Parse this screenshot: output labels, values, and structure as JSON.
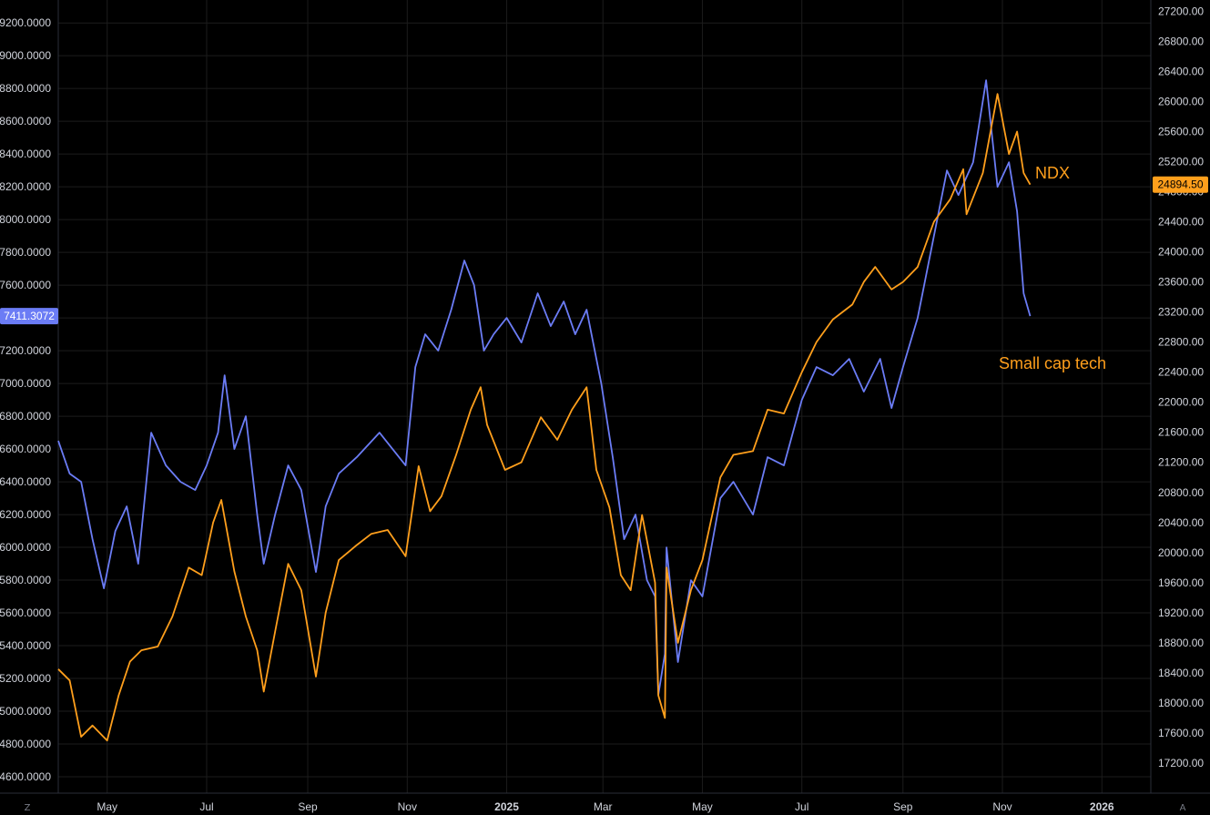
{
  "chart_data": {
    "type": "line",
    "background": "#000000",
    "grid": true,
    "colors": {
      "ndx": "#ff9f1c",
      "small_cap": "#6b7cf5",
      "grid": "#1c1c1c",
      "text": "#d1d4dc"
    },
    "x_labels": [
      "May",
      "Jul",
      "Sep",
      "Nov",
      "2025",
      "Mar",
      "May",
      "Jul",
      "Sep",
      "Nov",
      "2026"
    ],
    "x_range": [
      "2024-04-01",
      "2026-01-31"
    ],
    "left_axis": {
      "ticks": [
        "4600.0000",
        "4800.0000",
        "5000.0000",
        "5200.0000",
        "5400.0000",
        "5600.0000",
        "5800.0000",
        "6000.0000",
        "6200.0000",
        "6400.0000",
        "6600.0000",
        "6800.0000",
        "7000.0000",
        "7200.0000",
        "7400.0000",
        "7600.0000",
        "7800.0000",
        "8000.0000",
        "8200.0000",
        "8400.0000",
        "8600.0000",
        "8800.0000",
        "9000.0000",
        "9200.0000"
      ],
      "range": [
        4500,
        9340
      ],
      "last_value_label": "7411.3072"
    },
    "right_axis": {
      "ticks": [
        "17200.00",
        "17600.00",
        "18000.00",
        "18400.00",
        "18800.00",
        "19200.00",
        "19600.00",
        "20000.00",
        "20400.00",
        "20800.00",
        "21200.00",
        "21600.00",
        "22000.00",
        "22400.00",
        "22800.00",
        "23200.00",
        "23600.00",
        "24000.00",
        "24400.00",
        "24800.00",
        "25200.00",
        "25600.00",
        "26000.00",
        "26400.00",
        "26800.00",
        "27200.00"
      ],
      "range": [
        16800,
        27350
      ],
      "last_value_label": "24894.50"
    },
    "annotations": {
      "ndx": "NDX",
      "small_cap": "Small cap tech"
    },
    "corner_buttons": {
      "left": "Z",
      "right": "A"
    },
    "series": [
      {
        "name": "NDX",
        "axis": "right",
        "points": [
          [
            "2024-04-01",
            18450
          ],
          [
            "2024-04-08",
            18300
          ],
          [
            "2024-04-15",
            17550
          ],
          [
            "2024-04-22",
            17700
          ],
          [
            "2024-05-01",
            17500
          ],
          [
            "2024-05-08",
            18100
          ],
          [
            "2024-05-15",
            18550
          ],
          [
            "2024-05-22",
            18700
          ],
          [
            "2024-06-01",
            18750
          ],
          [
            "2024-06-10",
            19150
          ],
          [
            "2024-06-20",
            19800
          ],
          [
            "2024-06-28",
            19700
          ],
          [
            "2024-07-05",
            20400
          ],
          [
            "2024-07-10",
            20700
          ],
          [
            "2024-07-18",
            19750
          ],
          [
            "2024-07-25",
            19150
          ],
          [
            "2024-08-01",
            18700
          ],
          [
            "2024-08-05",
            18150
          ],
          [
            "2024-08-12",
            18950
          ],
          [
            "2024-08-20",
            19850
          ],
          [
            "2024-08-28",
            19500
          ],
          [
            "2024-09-06",
            18350
          ],
          [
            "2024-09-12",
            19200
          ],
          [
            "2024-09-20",
            19900
          ],
          [
            "2024-10-01",
            20100
          ],
          [
            "2024-10-10",
            20250
          ],
          [
            "2024-10-20",
            20300
          ],
          [
            "2024-10-31",
            19950
          ],
          [
            "2024-11-08",
            21150
          ],
          [
            "2024-11-15",
            20550
          ],
          [
            "2024-11-22",
            20750
          ],
          [
            "2024-12-01",
            21300
          ],
          [
            "2024-12-10",
            21900
          ],
          [
            "2024-12-16",
            22200
          ],
          [
            "2024-12-20",
            21700
          ],
          [
            "2024-12-31",
            21100
          ],
          [
            "2025-01-10",
            21200
          ],
          [
            "2025-01-22",
            21800
          ],
          [
            "2025-02-01",
            21500
          ],
          [
            "2025-02-10",
            21900
          ],
          [
            "2025-02-19",
            22200
          ],
          [
            "2025-02-25",
            21100
          ],
          [
            "2025-03-05",
            20600
          ],
          [
            "2025-03-12",
            19700
          ],
          [
            "2025-03-18",
            19500
          ],
          [
            "2025-03-25",
            20500
          ],
          [
            "2025-04-02",
            19600
          ],
          [
            "2025-04-04",
            18100
          ],
          [
            "2025-04-08",
            17800
          ],
          [
            "2025-04-09",
            19800
          ],
          [
            "2025-04-16",
            18800
          ],
          [
            "2025-04-24",
            19500
          ],
          [
            "2025-05-01",
            19900
          ],
          [
            "2025-05-12",
            21000
          ],
          [
            "2025-05-20",
            21300
          ],
          [
            "2025-06-01",
            21350
          ],
          [
            "2025-06-10",
            21900
          ],
          [
            "2025-06-20",
            21850
          ],
          [
            "2025-07-01",
            22400
          ],
          [
            "2025-07-10",
            22800
          ],
          [
            "2025-07-20",
            23100
          ],
          [
            "2025-08-01",
            23300
          ],
          [
            "2025-08-08",
            23600
          ],
          [
            "2025-08-15",
            23800
          ],
          [
            "2025-08-25",
            23500
          ],
          [
            "2025-09-01",
            23600
          ],
          [
            "2025-09-10",
            23800
          ],
          [
            "2025-09-20",
            24400
          ],
          [
            "2025-09-30",
            24700
          ],
          [
            "2025-10-08",
            25100
          ],
          [
            "2025-10-10",
            24500
          ],
          [
            "2025-10-20",
            25050
          ],
          [
            "2025-10-29",
            26100
          ],
          [
            "2025-11-05",
            25300
          ],
          [
            "2025-11-10",
            25600
          ],
          [
            "2025-11-14",
            25050
          ],
          [
            "2025-11-18",
            24894.5
          ]
        ]
      },
      {
        "name": "Small cap tech",
        "axis": "left",
        "points": [
          [
            "2024-04-01",
            6650
          ],
          [
            "2024-04-08",
            6450
          ],
          [
            "2024-04-15",
            6400
          ],
          [
            "2024-04-22",
            6050
          ],
          [
            "2024-04-29",
            5750
          ],
          [
            "2024-05-06",
            6100
          ],
          [
            "2024-05-13",
            6250
          ],
          [
            "2024-05-20",
            5900
          ],
          [
            "2024-05-28",
            6700
          ],
          [
            "2024-06-06",
            6500
          ],
          [
            "2024-06-15",
            6400
          ],
          [
            "2024-06-24",
            6350
          ],
          [
            "2024-07-01",
            6500
          ],
          [
            "2024-07-08",
            6700
          ],
          [
            "2024-07-12",
            7050
          ],
          [
            "2024-07-18",
            6600
          ],
          [
            "2024-07-25",
            6800
          ],
          [
            "2024-08-01",
            6200
          ],
          [
            "2024-08-05",
            5900
          ],
          [
            "2024-08-12",
            6200
          ],
          [
            "2024-08-20",
            6500
          ],
          [
            "2024-08-28",
            6350
          ],
          [
            "2024-09-06",
            5850
          ],
          [
            "2024-09-12",
            6250
          ],
          [
            "2024-09-20",
            6450
          ],
          [
            "2024-10-01",
            6550
          ],
          [
            "2024-10-15",
            6700
          ],
          [
            "2024-10-31",
            6500
          ],
          [
            "2024-11-06",
            7100
          ],
          [
            "2024-11-12",
            7300
          ],
          [
            "2024-11-20",
            7200
          ],
          [
            "2024-11-28",
            7450
          ],
          [
            "2024-12-06",
            7750
          ],
          [
            "2024-12-12",
            7600
          ],
          [
            "2024-12-18",
            7200
          ],
          [
            "2024-12-24",
            7300
          ],
          [
            "2025-01-01",
            7400
          ],
          [
            "2025-01-10",
            7250
          ],
          [
            "2025-01-20",
            7550
          ],
          [
            "2025-01-28",
            7350
          ],
          [
            "2025-02-05",
            7500
          ],
          [
            "2025-02-12",
            7300
          ],
          [
            "2025-02-19",
            7450
          ],
          [
            "2025-02-28",
            7000
          ],
          [
            "2025-03-07",
            6550
          ],
          [
            "2025-03-14",
            6050
          ],
          [
            "2025-03-21",
            6200
          ],
          [
            "2025-03-28",
            5800
          ],
          [
            "2025-04-02",
            5700
          ],
          [
            "2025-04-04",
            5100
          ],
          [
            "2025-04-08",
            5350
          ],
          [
            "2025-04-09",
            6000
          ],
          [
            "2025-04-16",
            5300
          ],
          [
            "2025-04-24",
            5800
          ],
          [
            "2025-05-01",
            5700
          ],
          [
            "2025-05-12",
            6300
          ],
          [
            "2025-05-20",
            6400
          ],
          [
            "2025-06-01",
            6200
          ],
          [
            "2025-06-10",
            6550
          ],
          [
            "2025-06-20",
            6500
          ],
          [
            "2025-07-01",
            6900
          ],
          [
            "2025-07-10",
            7100
          ],
          [
            "2025-07-20",
            7050
          ],
          [
            "2025-07-30",
            7150
          ],
          [
            "2025-08-08",
            6950
          ],
          [
            "2025-08-18",
            7150
          ],
          [
            "2025-08-25",
            6850
          ],
          [
            "2025-09-01",
            7100
          ],
          [
            "2025-09-10",
            7400
          ],
          [
            "2025-09-20",
            7900
          ],
          [
            "2025-09-28",
            8300
          ],
          [
            "2025-10-05",
            8150
          ],
          [
            "2025-10-14",
            8350
          ],
          [
            "2025-10-22",
            8850
          ],
          [
            "2025-10-29",
            8200
          ],
          [
            "2025-11-05",
            8350
          ],
          [
            "2025-11-10",
            8050
          ],
          [
            "2025-11-14",
            7550
          ],
          [
            "2025-11-18",
            7411.3072
          ]
        ]
      }
    ]
  }
}
